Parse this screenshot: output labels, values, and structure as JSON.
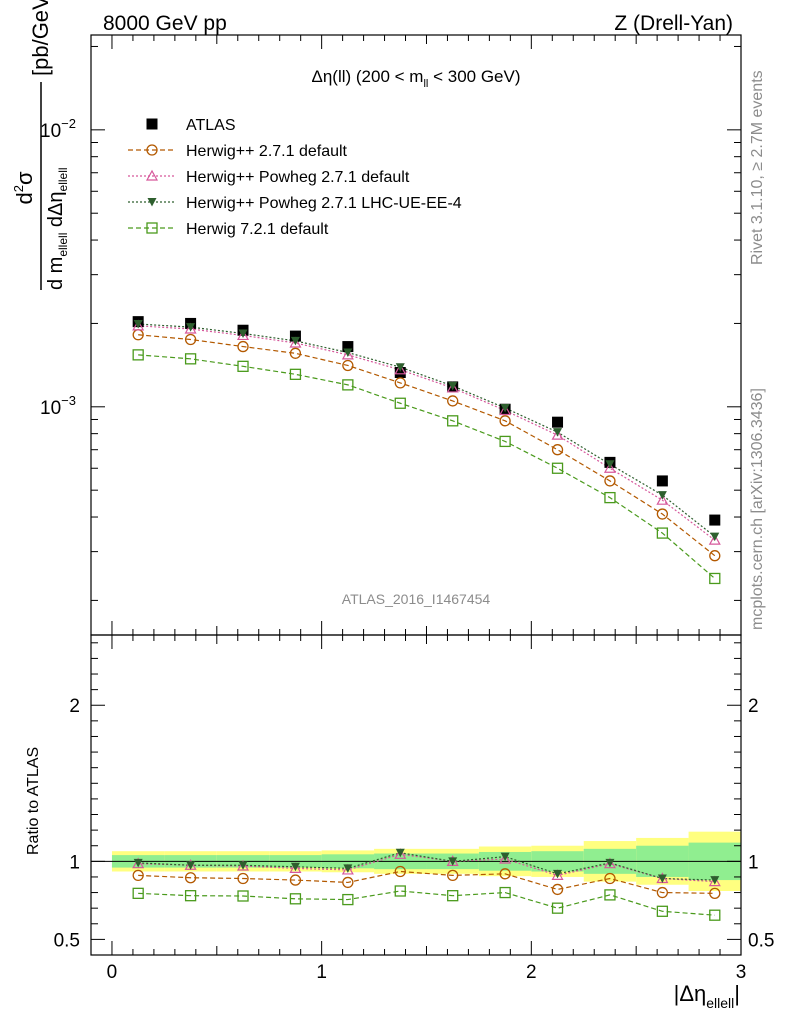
{
  "header": {
    "left": "8000 GeV pp",
    "right": "Z (Drell-Yan)"
  },
  "side_labels": {
    "rivet": "Rivet 3.1.10, ≥ 2.7M events",
    "mcplots": "mcplots.cern.ch [arXiv:1306.3436]"
  },
  "chart_data": [
    {
      "type": "scatter",
      "panel": "main",
      "title_parts": {
        "a": "Δη(ll) (200 < m",
        "sub": "ll",
        "b": " < 300 GeV)"
      },
      "ylabel_parts": {
        "num_a": "d",
        "num_sup": "2",
        "num_b": "σ",
        "den_a": "d m",
        "den_sub1": "ellell",
        "den_b": " dΔη",
        "den_sub2": "ellell",
        "unit": "[pb/GeV]"
      },
      "ytick_labels": {
        "main": "10",
        "exp_lo": "−3",
        "exp_hi": "−2"
      },
      "yscale": "log",
      "xlim": [
        -0.1,
        3.0
      ],
      "ylim": [
        0.00015,
        0.022
      ],
      "legend_position": "top-left",
      "watermark": "ATLAS_2016_I1467454",
      "x": [
        0.125,
        0.375,
        0.625,
        0.875,
        1.125,
        1.375,
        1.625,
        1.875,
        2.125,
        2.375,
        2.625,
        2.875
      ],
      "series": [
        {
          "name": "ATLAS",
          "color": "#000000",
          "marker": "filled-square",
          "line": "none",
          "values": [
            0.00203,
            0.002,
            0.00189,
            0.0018,
            0.00165,
            0.00133,
            0.00118,
            0.00098,
            0.00088,
            0.00063,
            0.00054,
            0.00039
          ]
        },
        {
          "name": "Herwig++ 2.7.1 default",
          "color": "#b35900",
          "marker": "open-circle",
          "line": "dashed",
          "values": [
            0.00182,
            0.00175,
            0.00165,
            0.00156,
            0.00141,
            0.00122,
            0.00105,
            0.00089,
            0.0007,
            0.00054,
            0.00041,
            0.00029
          ]
        },
        {
          "name": "Herwig++ Powheg 2.7.1 default",
          "color": "#d6589b",
          "marker": "open-triangle",
          "line": "dotted",
          "values": [
            0.00196,
            0.00191,
            0.00181,
            0.0017,
            0.00154,
            0.00136,
            0.00117,
            0.00097,
            0.00079,
            0.0006,
            0.00046,
            0.00033
          ]
        },
        {
          "name": "Herwig++ Powheg 2.7.1 LHC-UE-EE-4",
          "color": "#2e5f2e",
          "marker": "filled-triangle-down",
          "line": "dotted",
          "values": [
            0.00199,
            0.00194,
            0.00184,
            0.00173,
            0.00157,
            0.00139,
            0.00119,
            0.00099,
            0.00081,
            0.00062,
            0.00048,
            0.00034
          ]
        },
        {
          "name": "Herwig 7.2.1 default",
          "color": "#4a9a1c",
          "marker": "open-square",
          "line": "dashed",
          "values": [
            0.00154,
            0.00149,
            0.0014,
            0.00131,
            0.0012,
            0.00103,
            0.00089,
            0.00075,
            0.0006,
            0.00047,
            0.00035,
            0.00024
          ]
        }
      ]
    },
    {
      "type": "scatter",
      "panel": "ratio",
      "ylabel": "Ratio to ATLAS",
      "xlabel_parts": {
        "a": "|Δη",
        "sub": "ellell",
        "b": "|"
      },
      "xticks": [
        0,
        1,
        2,
        3
      ],
      "xtick_labels": [
        "0",
        "1",
        "2",
        "3"
      ],
      "yticks": [
        0.5,
        1,
        2
      ],
      "ytick_labels": [
        "0.5",
        "1",
        "2"
      ],
      "xlim": [
        -0.1,
        3.0
      ],
      "ylim": [
        0.4,
        2.45
      ],
      "x_edges": [
        0.0,
        0.25,
        0.5,
        0.75,
        1.0,
        1.25,
        1.5,
        1.75,
        2.0,
        2.25,
        2.5,
        2.75,
        3.0
      ],
      "band_inner": [
        0.04,
        0.04,
        0.04,
        0.04,
        0.045,
        0.05,
        0.05,
        0.06,
        0.065,
        0.08,
        0.1,
        0.12
      ],
      "band_outer": [
        0.065,
        0.065,
        0.065,
        0.065,
        0.07,
        0.08,
        0.08,
        0.095,
        0.1,
        0.13,
        0.15,
        0.19
      ],
      "band_colors": {
        "inner": "#90ee90",
        "outer": "#ffff80"
      },
      "x": [
        0.125,
        0.375,
        0.625,
        0.875,
        1.125,
        1.375,
        1.625,
        1.875,
        2.125,
        2.375,
        2.625,
        2.875
      ],
      "series": [
        {
          "name": "Herwig++ 2.7.1 default",
          "color": "#b35900",
          "marker": "open-circle",
          "line": "dashed",
          "values": [
            0.91,
            0.895,
            0.89,
            0.88,
            0.865,
            0.935,
            0.91,
            0.92,
            0.82,
            0.89,
            0.8,
            0.795
          ]
        },
        {
          "name": "Herwig++ Powheg 2.7.1 default",
          "color": "#d6589b",
          "marker": "open-triangle",
          "line": "dotted",
          "values": [
            0.985,
            0.975,
            0.97,
            0.955,
            0.945,
            1.045,
            1.0,
            1.015,
            0.91,
            0.985,
            0.89,
            0.87
          ]
        },
        {
          "name": "Herwig++ Powheg 2.7.1 LHC-UE-EE-4",
          "color": "#2e5f2e",
          "marker": "filled-triangle-down",
          "line": "dotted",
          "values": [
            0.99,
            0.975,
            0.975,
            0.965,
            0.955,
            1.055,
            1.0,
            1.03,
            0.92,
            0.99,
            0.89,
            0.88
          ]
        },
        {
          "name": "Herwig 7.2.1 default",
          "color": "#4a9a1c",
          "marker": "open-square",
          "line": "dashed",
          "values": [
            0.795,
            0.78,
            0.778,
            0.76,
            0.755,
            0.81,
            0.78,
            0.8,
            0.7,
            0.785,
            0.68,
            0.655
          ]
        }
      ]
    }
  ]
}
